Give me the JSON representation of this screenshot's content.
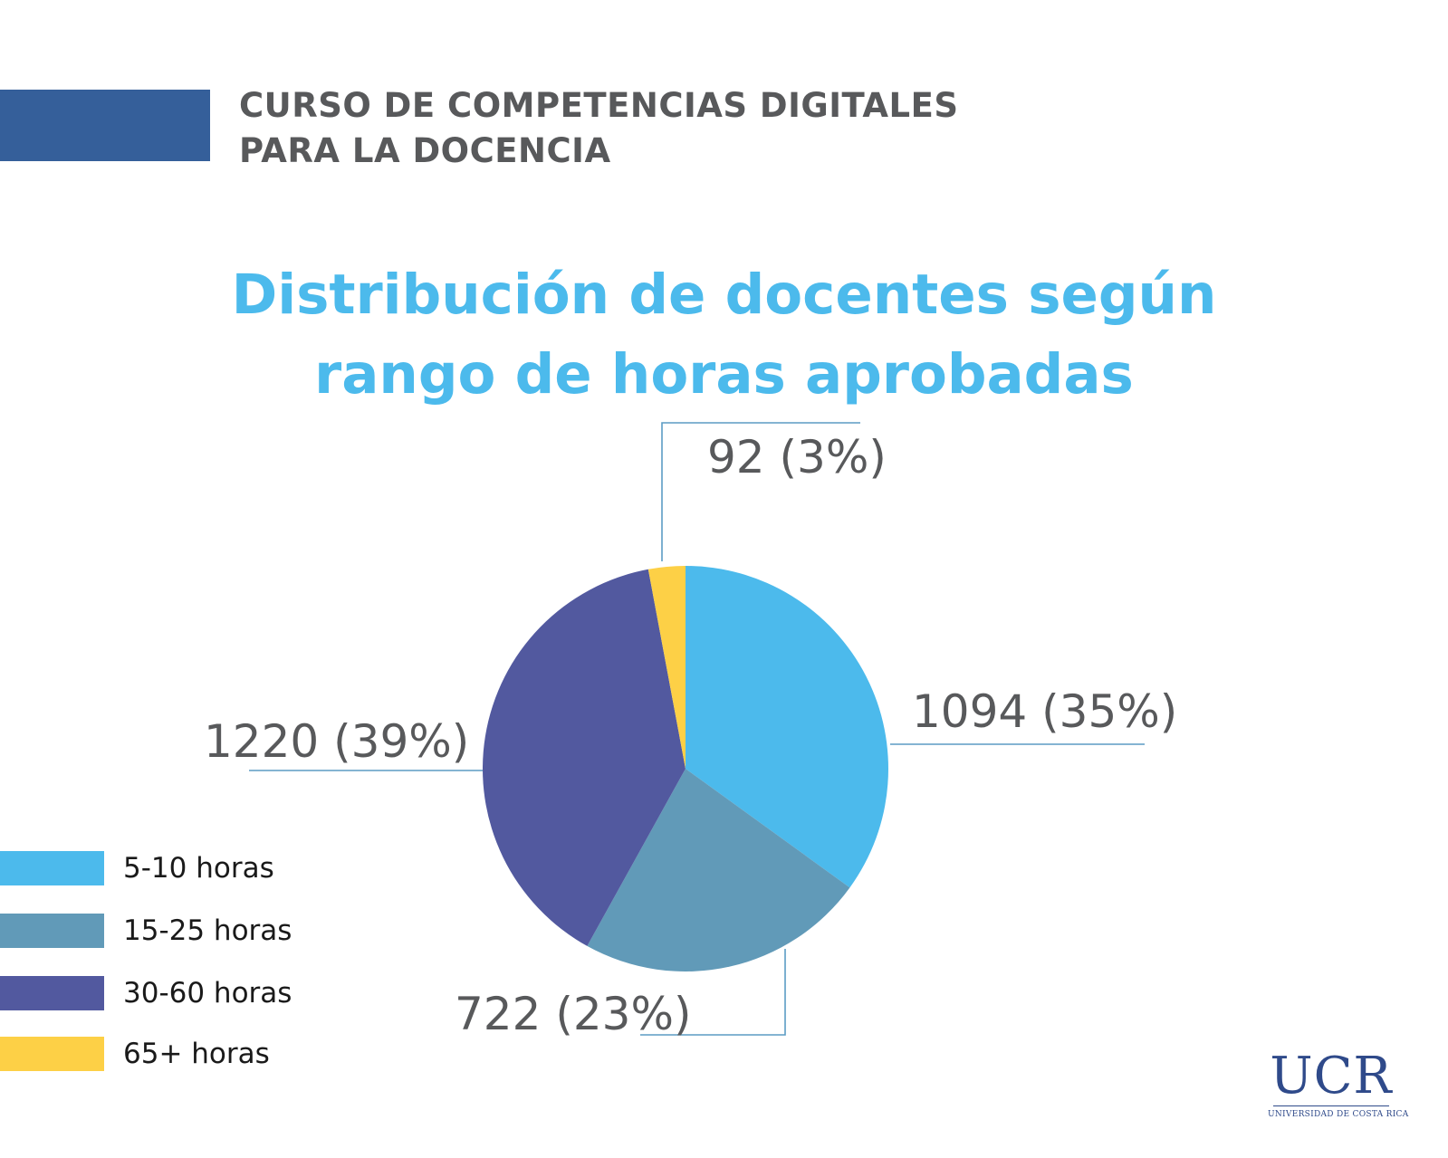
{
  "header": {
    "title_line1": "CURSO DE COMPETENCIAS DIGITALES",
    "title_line2": "PARA LA DOCENCIA"
  },
  "colors": {
    "header_bar": "#355f9a",
    "title": "#4cbaec",
    "label_text": "#58595b",
    "leader_line": "#5b9cc4",
    "logo": "#2f4a8a"
  },
  "chart_data": {
    "type": "pie",
    "title_line1": "Distribución de docentes según",
    "title_line2": "rango de horas aprobadas",
    "slices": [
      {
        "name": "5-10 horas",
        "value": 1094,
        "percent": 35,
        "label": "1094 (35%)",
        "color": "#4cbaec"
      },
      {
        "name": "15-25 horas",
        "value": 722,
        "percent": 23,
        "label": "722 (23%)",
        "color": "#619ab8"
      },
      {
        "name": "30-60 horas",
        "value": 1220,
        "percent": 39,
        "label": "1220 (39%)",
        "color": "#52599f"
      },
      {
        "name": "65+ horas",
        "value": 92,
        "percent": 3,
        "label": "92 (3%)",
        "color": "#fdd046"
      }
    ],
    "legend_position": "bottom-left"
  },
  "logo": {
    "main": "UCR",
    "sub": "UNIVERSIDAD DE COSTA RICA"
  }
}
